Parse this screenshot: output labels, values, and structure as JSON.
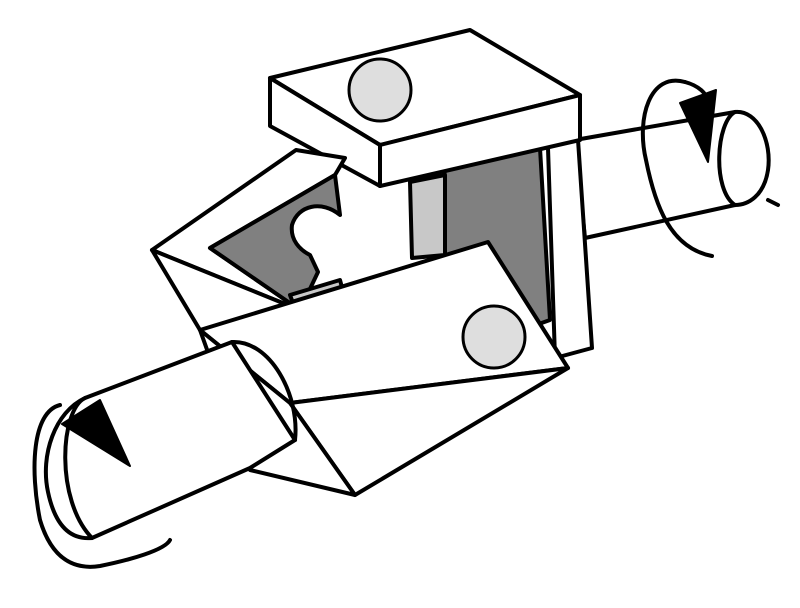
{
  "figure": {
    "subject": "universal-joint",
    "colors": {
      "stroke": "#000000",
      "background": "#ffffff",
      "dark_shade": "#808080",
      "light_shade": "#c8c8c8",
      "pin": "#dedede"
    },
    "icons": [
      "rotation-arrow-icon",
      "rotation-arrow-icon"
    ]
  }
}
